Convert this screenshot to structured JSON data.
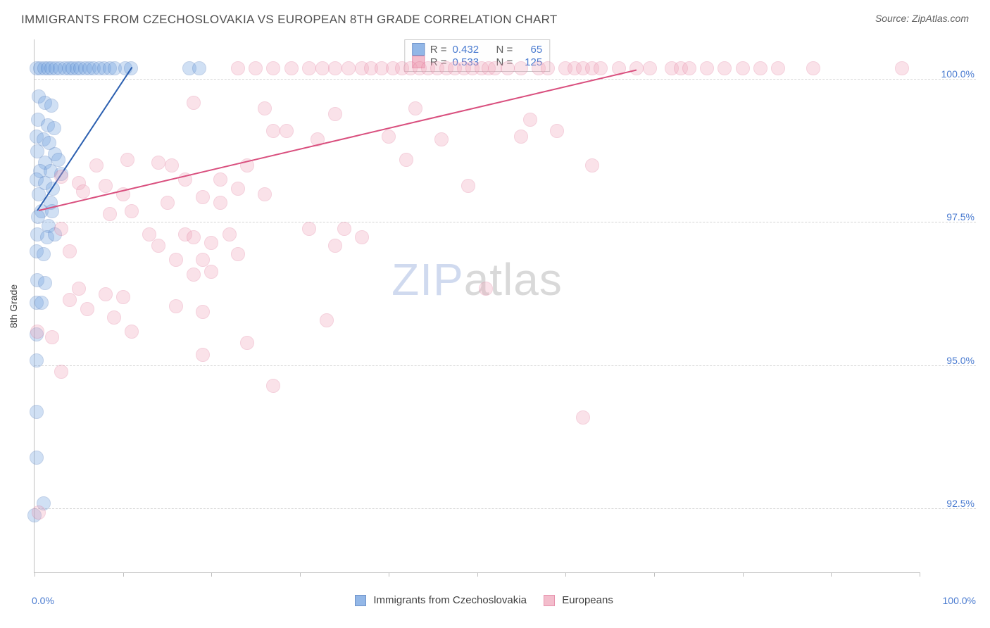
{
  "title": "IMMIGRANTS FROM CZECHOSLOVAKIA VS EUROPEAN 8TH GRADE CORRELATION CHART",
  "source": "Source: ZipAtlas.com",
  "chart": {
    "type": "scatter",
    "ylabel": "8th Grade",
    "xlim": [
      0,
      100
    ],
    "ylim": [
      91.4,
      100.7
    ],
    "xtick_positions": [
      0,
      10,
      20,
      30,
      40,
      50,
      60,
      70,
      80,
      90,
      100
    ],
    "xmin_label": "0.0%",
    "xmax_label": "100.0%",
    "yticks": [
      {
        "v": 100.0,
        "label": "100.0%"
      },
      {
        "v": 97.5,
        "label": "97.5%"
      },
      {
        "v": 95.0,
        "label": "95.0%"
      },
      {
        "v": 92.5,
        "label": "92.5%"
      }
    ],
    "background_color": "#ffffff",
    "grid_color": "#d5d5d5",
    "axis_color": "#bfbfbf",
    "tick_label_color": "#4a7bd0",
    "point_radius": 10,
    "point_opacity": 0.32,
    "series": [
      {
        "name": "Immigrants from Czechoslovakia",
        "fill": "#6fa0e0",
        "stroke": "#3f6fb8",
        "R": "0.432",
        "N": "65",
        "trend": {
          "x1": 0.3,
          "y1": 97.7,
          "x2": 11.0,
          "y2": 100.2,
          "color": "#2b5fb0",
          "width": 2
        },
        "points": [
          [
            0.2,
            100.2
          ],
          [
            0.6,
            100.2
          ],
          [
            1.1,
            100.2
          ],
          [
            1.5,
            100.2
          ],
          [
            1.9,
            100.2
          ],
          [
            2.4,
            100.2
          ],
          [
            2.9,
            100.2
          ],
          [
            3.4,
            100.2
          ],
          [
            3.9,
            100.2
          ],
          [
            4.3,
            100.2
          ],
          [
            4.8,
            100.2
          ],
          [
            5.2,
            100.2
          ],
          [
            5.7,
            100.2
          ],
          [
            6.2,
            100.2
          ],
          [
            6.7,
            100.2
          ],
          [
            7.3,
            100.2
          ],
          [
            7.9,
            100.2
          ],
          [
            8.5,
            100.2
          ],
          [
            9.1,
            100.2
          ],
          [
            10.3,
            100.2
          ],
          [
            10.9,
            100.2
          ],
          [
            17.5,
            100.2
          ],
          [
            18.6,
            100.2
          ],
          [
            0.5,
            99.7
          ],
          [
            1.2,
            99.6
          ],
          [
            1.9,
            99.55
          ],
          [
            0.4,
            99.3
          ],
          [
            1.5,
            99.2
          ],
          [
            2.2,
            99.15
          ],
          [
            0.2,
            99.0
          ],
          [
            1.0,
            98.95
          ],
          [
            1.7,
            98.9
          ],
          [
            0.3,
            98.75
          ],
          [
            2.3,
            98.7
          ],
          [
            2.7,
            98.6
          ],
          [
            1.2,
            98.55
          ],
          [
            0.6,
            98.4
          ],
          [
            1.8,
            98.4
          ],
          [
            3.0,
            98.35
          ],
          [
            0.2,
            98.25
          ],
          [
            1.2,
            98.2
          ],
          [
            2.1,
            98.1
          ],
          [
            0.5,
            98.0
          ],
          [
            1.8,
            97.85
          ],
          [
            0.8,
            97.7
          ],
          [
            2.0,
            97.7
          ],
          [
            0.4,
            97.6
          ],
          [
            1.6,
            97.45
          ],
          [
            0.3,
            97.3
          ],
          [
            1.4,
            97.25
          ],
          [
            2.3,
            97.3
          ],
          [
            0.2,
            97.0
          ],
          [
            1.0,
            96.95
          ],
          [
            0.3,
            96.5
          ],
          [
            1.2,
            96.45
          ],
          [
            0.2,
            96.1
          ],
          [
            0.8,
            96.1
          ],
          [
            0.2,
            95.55
          ],
          [
            0.2,
            95.1
          ],
          [
            0.2,
            94.2
          ],
          [
            0.2,
            93.4
          ],
          [
            1.0,
            92.6
          ],
          [
            0.0,
            92.4
          ]
        ]
      },
      {
        "name": "Europeans",
        "fill": "#f0a8bc",
        "stroke": "#e06f94",
        "R": "0.533",
        "N": "125",
        "trend": {
          "x1": 0.5,
          "y1": 97.7,
          "x2": 68.0,
          "y2": 100.15,
          "color": "#d94f7e",
          "width": 2
        },
        "points": [
          [
            23,
            100.2
          ],
          [
            25,
            100.2
          ],
          [
            27,
            100.2
          ],
          [
            29,
            100.2
          ],
          [
            31,
            100.2
          ],
          [
            32.5,
            100.2
          ],
          [
            34,
            100.2
          ],
          [
            35.5,
            100.2
          ],
          [
            37,
            100.2
          ],
          [
            38,
            100.2
          ],
          [
            39.2,
            100.2
          ],
          [
            40.5,
            100.2
          ],
          [
            41.5,
            100.2
          ],
          [
            42.5,
            100.2
          ],
          [
            43.5,
            100.2
          ],
          [
            44.5,
            100.2
          ],
          [
            45.5,
            100.2
          ],
          [
            46.5,
            100.2
          ],
          [
            47.5,
            100.2
          ],
          [
            48.5,
            100.2
          ],
          [
            49.5,
            100.2
          ],
          [
            50.5,
            100.2
          ],
          [
            51.3,
            100.2
          ],
          [
            52,
            100.2
          ],
          [
            53.5,
            100.2
          ],
          [
            55,
            100.2
          ],
          [
            57,
            100.2
          ],
          [
            58,
            100.2
          ],
          [
            60,
            100.2
          ],
          [
            61,
            100.2
          ],
          [
            62,
            100.2
          ],
          [
            63,
            100.2
          ],
          [
            64,
            100.2
          ],
          [
            66,
            100.2
          ],
          [
            68,
            100.2
          ],
          [
            69.5,
            100.2
          ],
          [
            72,
            100.2
          ],
          [
            73,
            100.2
          ],
          [
            74,
            100.2
          ],
          [
            76,
            100.2
          ],
          [
            78,
            100.2
          ],
          [
            80,
            100.2
          ],
          [
            82,
            100.2
          ],
          [
            84,
            100.2
          ],
          [
            88,
            100.2
          ],
          [
            98,
            100.2
          ],
          [
            18,
            99.6
          ],
          [
            26,
            99.5
          ],
          [
            27,
            99.1
          ],
          [
            28.5,
            99.1
          ],
          [
            34,
            99.4
          ],
          [
            32,
            98.95
          ],
          [
            40,
            99.0
          ],
          [
            43,
            99.5
          ],
          [
            46,
            98.95
          ],
          [
            55,
            99.0
          ],
          [
            56,
            99.3
          ],
          [
            59,
            99.1
          ],
          [
            3,
            98.3
          ],
          [
            5,
            98.2
          ],
          [
            5.5,
            98.05
          ],
          [
            7,
            98.5
          ],
          [
            8,
            98.15
          ],
          [
            8.5,
            97.65
          ],
          [
            10,
            98.0
          ],
          [
            10.5,
            98.6
          ],
          [
            11,
            97.7
          ],
          [
            14,
            98.55
          ],
          [
            15,
            97.85
          ],
          [
            15.5,
            98.5
          ],
          [
            17,
            98.25
          ],
          [
            19,
            97.95
          ],
          [
            21,
            97.85
          ],
          [
            21,
            98.25
          ],
          [
            23,
            98.1
          ],
          [
            24,
            98.5
          ],
          [
            26,
            98.0
          ],
          [
            42,
            98.6
          ],
          [
            13,
            97.3
          ],
          [
            14,
            97.1
          ],
          [
            16,
            96.85
          ],
          [
            17,
            97.3
          ],
          [
            18,
            97.25
          ],
          [
            18,
            96.6
          ],
          [
            19,
            96.85
          ],
          [
            20,
            97.15
          ],
          [
            20,
            96.65
          ],
          [
            22,
            97.3
          ],
          [
            23,
            96.95
          ],
          [
            31,
            97.4
          ],
          [
            34,
            97.1
          ],
          [
            35,
            97.4
          ],
          [
            37,
            97.25
          ],
          [
            51,
            96.35
          ],
          [
            4,
            96.15
          ],
          [
            5,
            96.35
          ],
          [
            6,
            96.0
          ],
          [
            8,
            96.25
          ],
          [
            9,
            95.85
          ],
          [
            10,
            96.2
          ],
          [
            11,
            95.6
          ],
          [
            16,
            96.05
          ],
          [
            19,
            95.95
          ],
          [
            24,
            95.4
          ],
          [
            33,
            95.8
          ],
          [
            19,
            95.2
          ],
          [
            3,
            97.4
          ],
          [
            4,
            97.0
          ],
          [
            2,
            95.5
          ],
          [
            3,
            94.9
          ],
          [
            27,
            94.65
          ],
          [
            62,
            94.1
          ],
          [
            49,
            98.15
          ],
          [
            63,
            98.5
          ],
          [
            0.5,
            92.45
          ],
          [
            0.3,
            95.6
          ]
        ]
      }
    ],
    "legend": {
      "s1_label": "Immigrants from Czechoslovakia",
      "s2_label": "Europeans"
    },
    "stats_header": {
      "R_label": "R =",
      "N_label": "N ="
    },
    "watermark": {
      "left": "ZIP",
      "right": "atlas"
    }
  }
}
